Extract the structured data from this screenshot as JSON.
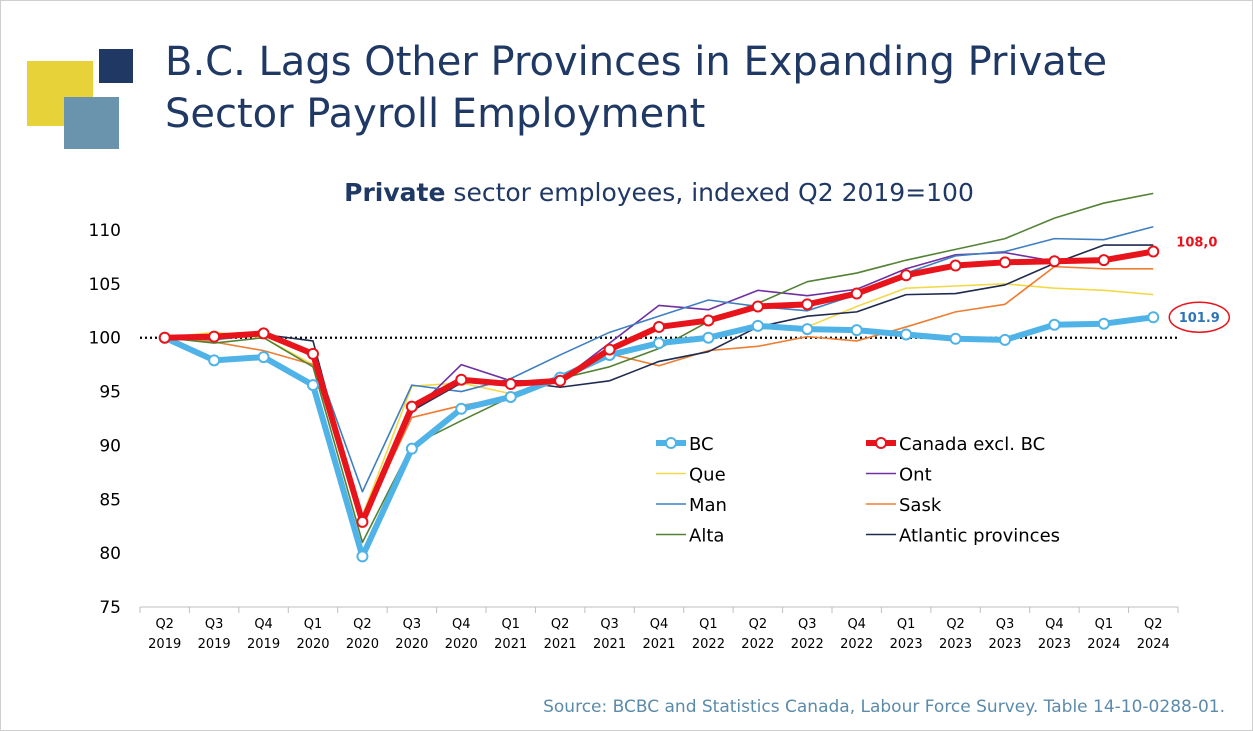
{
  "title": [
    "B.C. Lags Other Provinces in Expanding Private",
    "Sector Payroll Employment"
  ],
  "source": "Source: BCBC and Statistics Canada, Labour Force Survey. Table 14-10-0288-01.",
  "chart_data": {
    "type": "line",
    "title_bold": "Private",
    "title": "sector employees, indexed Q2 2019=100",
    "categories": [
      [
        "Q2",
        "2019"
      ],
      [
        "Q3",
        "2019"
      ],
      [
        "Q4",
        "2019"
      ],
      [
        "Q1",
        "2020"
      ],
      [
        "Q2",
        "2020"
      ],
      [
        "Q3",
        "2020"
      ],
      [
        "Q4",
        "2020"
      ],
      [
        "Q1",
        "2021"
      ],
      [
        "Q2",
        "2021"
      ],
      [
        "Q3",
        "2021"
      ],
      [
        "Q4",
        "2021"
      ],
      [
        "Q1",
        "2022"
      ],
      [
        "Q2",
        "2022"
      ],
      [
        "Q3",
        "2022"
      ],
      [
        "Q4",
        "2022"
      ],
      [
        "Q1",
        "2023"
      ],
      [
        "Q2",
        "2023"
      ],
      [
        "Q3",
        "2023"
      ],
      [
        "Q4",
        "2023"
      ],
      [
        "Q1",
        "2024"
      ],
      [
        "Q2",
        "2024"
      ]
    ],
    "ylim": [
      75,
      110
    ],
    "yticks": [
      75,
      80,
      85,
      90,
      95,
      100,
      105,
      110
    ],
    "reference_line": 100,
    "series": [
      {
        "name": "BC",
        "color": "#4fb3e8",
        "width": 6,
        "markers": true,
        "label_last": true,
        "label_color": "#2e75b6",
        "values": [
          100,
          97.9,
          98.2,
          95.6,
          79.7,
          89.7,
          93.4,
          94.5,
          96.3,
          98.4,
          99.5,
          100.0,
          101.1,
          100.8,
          100.7,
          100.3,
          99.9,
          99.8,
          101.2,
          101.3,
          101.9
        ]
      },
      {
        "name": "Canada excl. BC",
        "color": "#e8141c",
        "width": 6,
        "markers": true,
        "label_last": true,
        "label_color": "#e8141c",
        "values": [
          100,
          100.1,
          100.4,
          98.5,
          82.9,
          93.6,
          96.1,
          95.7,
          96.0,
          98.9,
          101.0,
          101.6,
          102.9,
          103.1,
          104.1,
          105.8,
          106.7,
          107.0,
          107.1,
          107.2,
          108.0
        ],
        "value_labels": [
          null,
          null,
          null,
          null,
          null,
          null,
          null,
          null,
          null,
          null,
          null,
          null,
          null,
          null,
          null,
          null,
          null,
          null,
          null,
          null,
          "108,0"
        ]
      },
      {
        "name": "Que",
        "color": "#f2d94a",
        "width": 1.6,
        "values": [
          100,
          100.5,
          100.0,
          97.5,
          83.5,
          95.5,
          95.8,
          94.8,
          96.2,
          98.3,
          99.6,
          100.2,
          100.8,
          101.0,
          102.9,
          104.6,
          104.8,
          105.0,
          104.6,
          104.4,
          104.0
        ]
      },
      {
        "name": "Ont",
        "color": "#7030a0",
        "width": 1.6,
        "values": [
          100,
          100.0,
          100.6,
          98.2,
          82.5,
          93.0,
          97.5,
          96.0,
          96.0,
          99.5,
          103.0,
          102.6,
          104.4,
          103.9,
          104.5,
          106.4,
          107.7,
          107.9,
          107.1,
          107.0,
          107.9
        ]
      },
      {
        "name": "Man",
        "color": "#3f7fbf",
        "width": 1.6,
        "values": [
          100,
          99.8,
          100.3,
          98.5,
          85.7,
          95.6,
          95.0,
          96.2,
          98.4,
          100.5,
          102.0,
          103.5,
          102.9,
          102.5,
          104.0,
          106.0,
          107.6,
          108.0,
          109.2,
          109.1,
          110.3
        ]
      },
      {
        "name": "Sask",
        "color": "#ed7d31",
        "width": 1.6,
        "values": [
          100.2,
          99.6,
          98.8,
          97.5,
          83.0,
          92.6,
          93.7,
          94.5,
          96.0,
          98.5,
          97.4,
          98.8,
          99.2,
          100.1,
          99.7,
          101.0,
          102.4,
          103.1,
          106.6,
          106.4,
          106.4
        ]
      },
      {
        "name": "Alta",
        "color": "#548235",
        "width": 1.6,
        "values": [
          100,
          99.5,
          100.0,
          97.3,
          81.0,
          90.0,
          92.3,
          94.5,
          96.2,
          97.3,
          99.0,
          101.5,
          103.2,
          105.2,
          106.0,
          107.2,
          108.2,
          109.2,
          111.1,
          112.5,
          113.4
        ]
      },
      {
        "name": "Atlantic provinces",
        "color": "#1f2a4f",
        "width": 1.6,
        "values": [
          100,
          100.2,
          100.3,
          99.7,
          82.5,
          93.2,
          95.8,
          96.0,
          95.4,
          96.0,
          97.8,
          98.7,
          101.0,
          102.0,
          102.4,
          104.0,
          104.1,
          104.9,
          106.9,
          108.6,
          108.6
        ]
      }
    ]
  }
}
